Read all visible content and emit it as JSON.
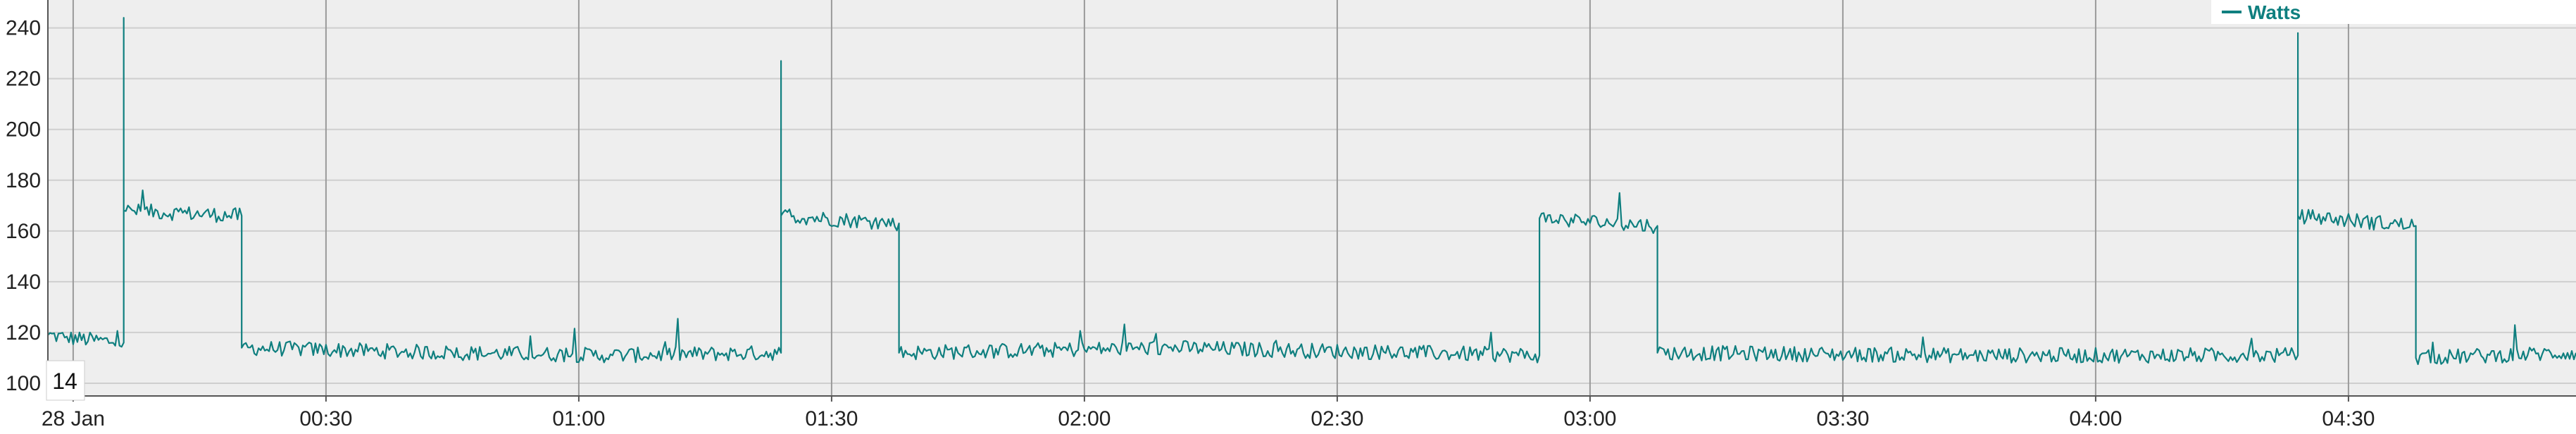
{
  "colors": {
    "series": "#0f7f7f",
    "plot_background": "#eeeeee",
    "grid": "#cfcfcf",
    "vertical_grid": "#9a9a9a",
    "axis": "#555555",
    "legend_background": "#ffffff"
  },
  "corner_badge": {
    "text": "14"
  },
  "chart_data": {
    "type": "line",
    "x_axis": {
      "type": "time",
      "range": [
        "27 Jan 23:57",
        "28 Jan 04:57"
      ],
      "tick_times": [
        "28 Jan 00:00",
        "28 Jan 00:30",
        "28 Jan 01:00",
        "28 Jan 01:30",
        "28 Jan 02:00",
        "28 Jan 02:30",
        "28 Jan 03:00",
        "28 Jan 03:30",
        "28 Jan 04:00",
        "28 Jan 04:30"
      ],
      "tick_labels": [
        "28 Jan",
        "00:30",
        "01:00",
        "01:30",
        "02:00",
        "02:30",
        "03:00",
        "03:30",
        "04:00",
        "04:30"
      ]
    },
    "y_axis": {
      "ylim": [
        95,
        251
      ],
      "ticks": [
        100,
        120,
        140,
        160,
        180,
        200,
        220,
        240
      ],
      "tick_labels": [
        "100",
        "120",
        "140",
        "160",
        "180",
        "200",
        "220",
        "240"
      ]
    },
    "grid": true,
    "legend": {
      "position": "top-right"
    },
    "series": [
      {
        "name": "Watts",
        "noise_amplitude": 3,
        "points": [
          {
            "t": "27 Jan 23:57",
            "y": 119
          },
          {
            "t": "27 Jan 23:59",
            "y": 118
          },
          {
            "t": "28 Jan 00:06",
            "y": 116
          },
          {
            "t": "28 Jan 00:06",
            "y": 244
          },
          {
            "t": "28 Jan 00:06",
            "y": 168
          },
          {
            "t": "28 Jan 00:20",
            "y": 166
          },
          {
            "t": "28 Jan 00:20",
            "y": 114
          },
          {
            "t": "28 Jan 00:45",
            "y": 112
          },
          {
            "t": "28 Jan 01:04",
            "y": 111
          },
          {
            "t": "28 Jan 01:24",
            "y": 112
          },
          {
            "t": "28 Jan 01:24",
            "y": 227
          },
          {
            "t": "28 Jan 01:24",
            "y": 166
          },
          {
            "t": "28 Jan 01:38",
            "y": 163
          },
          {
            "t": "28 Jan 01:38",
            "y": 112
          },
          {
            "t": "28 Jan 02:10",
            "y": 114
          },
          {
            "t": "28 Jan 02:54",
            "y": 111
          },
          {
            "t": "28 Jan 02:54",
            "y": 165
          },
          {
            "t": "28 Jan 03:08",
            "y": 162
          },
          {
            "t": "28 Jan 03:08",
            "y": 112
          },
          {
            "t": "28 Jan 03:45",
            "y": 111
          },
          {
            "t": "28 Jan 04:24",
            "y": 111
          },
          {
            "t": "28 Jan 04:24",
            "y": 238
          },
          {
            "t": "28 Jan 04:24",
            "y": 166
          },
          {
            "t": "28 Jan 04:38",
            "y": 162
          },
          {
            "t": "28 Jan 04:38",
            "y": 110
          },
          {
            "t": "28 Jan 04:57",
            "y": 112
          }
        ]
      }
    ]
  }
}
